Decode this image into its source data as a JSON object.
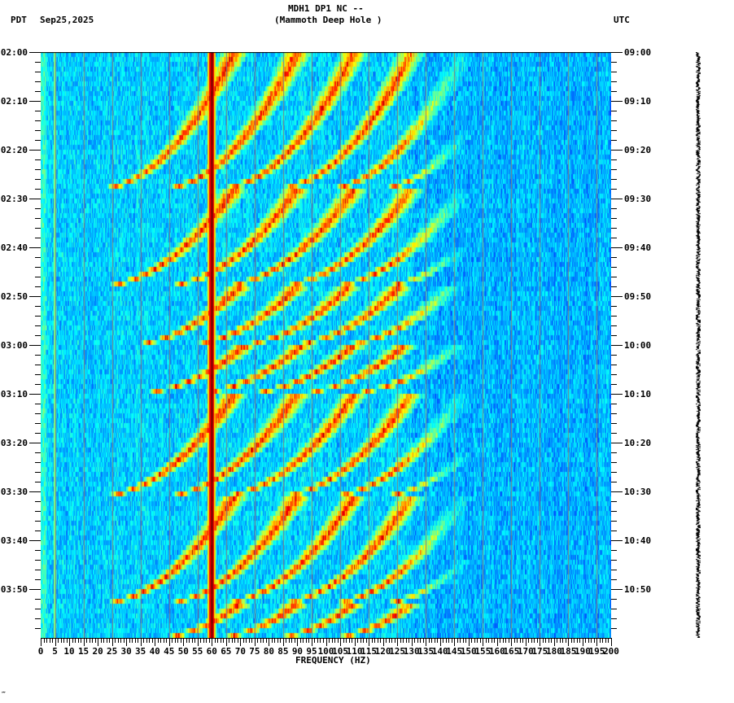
{
  "header": {
    "station_line": "MDH1 DP1 NC --",
    "station_name": "(Mammoth Deep Hole )",
    "left_timezone": "PDT",
    "date": "Sep25,2025",
    "right_timezone": "UTC"
  },
  "footer": {
    "mark": "‴"
  },
  "colors": {
    "background_low": "#0050ff",
    "background_mid": "#00aaff",
    "cyan": "#00e5ff",
    "green": "#60ff90",
    "yellow": "#f0ff20",
    "orange": "#ff8000",
    "red": "#c00000",
    "dark_red": "#7a0000",
    "gridline": "#808080",
    "trace": "#000000"
  },
  "chart_data": {
    "type": "heatmap",
    "title": "MDH1 DP1 NC -- (Mammoth Deep Hole )",
    "subtitle": "PDT Sep25,2025 / UTC",
    "xlabel": "FREQUENCY (HZ)",
    "ylabel_left": "PDT",
    "ylabel_right": "UTC",
    "xlim": [
      0,
      200
    ],
    "x_ticks": [
      0,
      5,
      10,
      15,
      20,
      25,
      30,
      35,
      40,
      45,
      50,
      55,
      60,
      65,
      70,
      75,
      80,
      85,
      90,
      95,
      100,
      105,
      110,
      115,
      120,
      125,
      130,
      135,
      140,
      145,
      150,
      155,
      160,
      165,
      170,
      175,
      180,
      185,
      190,
      195,
      200
    ],
    "x_minor_tick_step": 1,
    "y_range_minutes": [
      0,
      120
    ],
    "y_ticks_left": [
      "02:00",
      "02:10",
      "02:20",
      "02:30",
      "02:40",
      "02:50",
      "03:00",
      "03:10",
      "03:20",
      "03:30",
      "03:40",
      "03:50"
    ],
    "y_ticks_right": [
      "09:00",
      "09:10",
      "09:20",
      "09:30",
      "09:40",
      "09:50",
      "10:00",
      "10:10",
      "10:20",
      "10:30",
      "10:40",
      "10:50"
    ],
    "y_tick_interval_minutes": 10,
    "y_minor_tick_interval_minutes": 2,
    "vertical_gridlines_hz": [
      5,
      15,
      25,
      35,
      45,
      55,
      65,
      75,
      85,
      95,
      105,
      115,
      125,
      135,
      145,
      155,
      165,
      175,
      185,
      195
    ],
    "persistent_lines": [
      {
        "freq_hz": 60,
        "description": "strong power-line hum, dark red/red full-duration line"
      },
      {
        "freq_hz": 5,
        "description": "faint greenish line"
      }
    ],
    "colormap": "jet (blue low power -> cyan -> yellow -> red high power)",
    "dominant_background": "blue/cyan noise, quieter above ~130 Hz",
    "events": [
      {
        "type": "upward-curving frequency sweeps (arcs)",
        "start_min": 0,
        "end_min": 28,
        "harmonic_starts_hz": [
          20,
          42,
          62,
          82,
          100,
          118
        ],
        "end_hz_offset": 48
      },
      {
        "type": "upward-curving frequency sweeps (arcs)",
        "start_min": 28,
        "end_min": 48,
        "harmonic_starts_hz": [
          20,
          42,
          62,
          82,
          100,
          118
        ],
        "end_hz_offset": 48
      },
      {
        "type": "upward-curving frequency sweeps (arcs)",
        "start_min": 48,
        "end_min": 60,
        "harmonic_starts_hz": [
          30,
          50,
          68,
          86,
          104
        ],
        "end_hz_offset": 40
      },
      {
        "type": "upward-curving frequency sweeps (arcs)",
        "start_min": 60,
        "end_min": 70,
        "harmonic_starts_hz": [
          32,
          52,
          70,
          88,
          106
        ],
        "end_hz_offset": 40
      },
      {
        "type": "upward-curving frequency sweeps (arcs)",
        "start_min": 70,
        "end_min": 91,
        "harmonic_starts_hz": [
          20,
          42,
          62,
          82,
          100,
          118
        ],
        "end_hz_offset": 48
      },
      {
        "type": "upward-curving frequency sweeps (arcs)",
        "start_min": 91,
        "end_min": 113,
        "harmonic_starts_hz": [
          20,
          42,
          62,
          82,
          100,
          118
        ],
        "end_hz_offset": 48
      },
      {
        "type": "upward-curving frequency sweeps (arcs)",
        "start_min": 113,
        "end_min": 120,
        "harmonic_starts_hz": [
          40,
          60,
          80,
          100
        ],
        "end_hz_offset": 30
      }
    ]
  }
}
